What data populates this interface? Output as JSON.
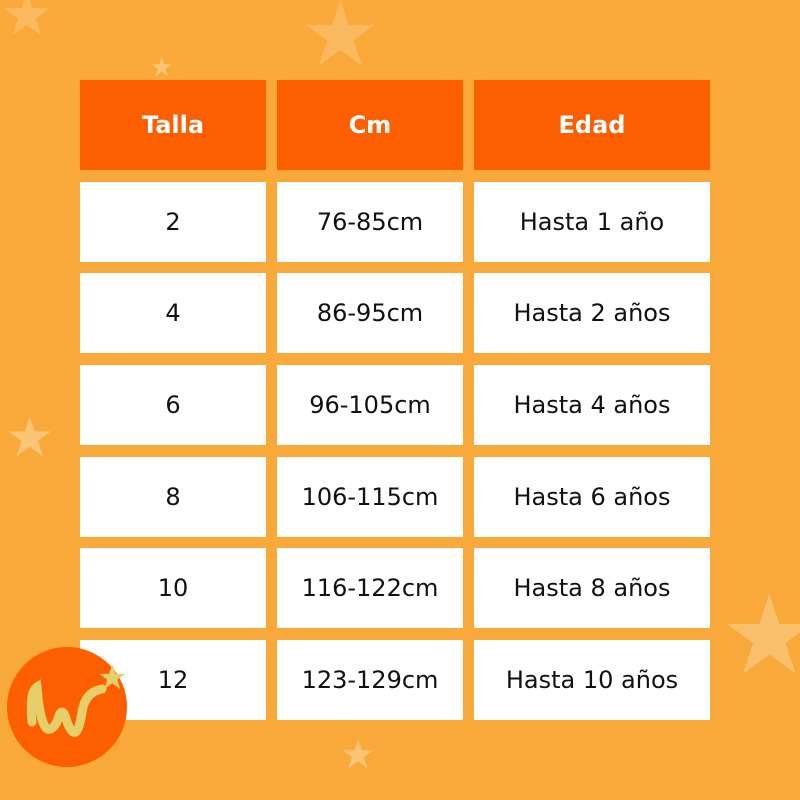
{
  "table": {
    "headers": [
      "Talla",
      "Cm",
      "Edad"
    ],
    "rows": [
      [
        "2",
        "76-85cm",
        "Hasta 1 año"
      ],
      [
        "4",
        "86-95cm",
        "Hasta 2 años"
      ],
      [
        "6",
        "96-105cm",
        "Hasta 4 años"
      ],
      [
        "8",
        "106-115cm",
        "Hasta 6 años"
      ],
      [
        "10",
        "116-122cm",
        "Hasta 8 años"
      ],
      [
        "12",
        "123-129cm",
        "Hasta 10 años"
      ]
    ]
  },
  "logo": {
    "text": "w",
    "icon": "star-icon"
  },
  "colors": {
    "background": "#f9a93a",
    "header": "#fd5e00",
    "cell": "#ffffff",
    "logo_gold": "#e6cf6a"
  }
}
